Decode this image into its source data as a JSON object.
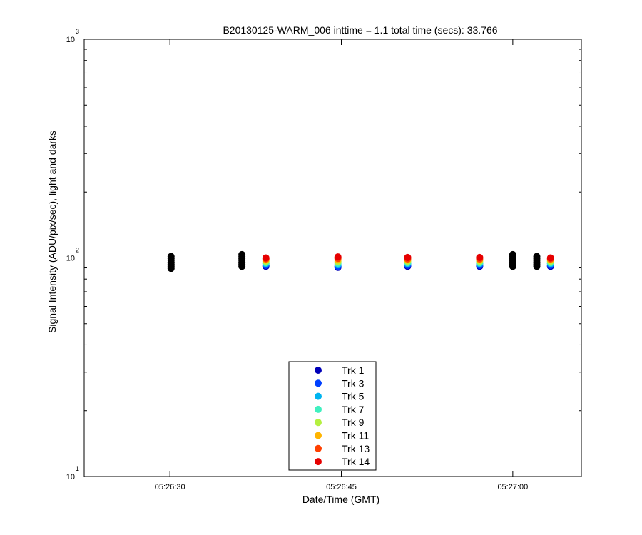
{
  "chart_data": {
    "type": "scatter",
    "title": "B20130125-WARM_006 inttime = 1.1 total time (secs): 33.766",
    "xlabel": "Date/Time (GMT)",
    "ylabel": "Signal Intensity (ADU/pix/sec), light and darks",
    "x_range": [
      "05:26:22.5",
      "05:27:06"
    ],
    "y_scale": "log",
    "ylim": [
      10,
      1000
    ],
    "grid": false,
    "legend_position": "bottom-center",
    "x_ticks": [
      "05:26:30",
      "05:26:45",
      "05:27:00"
    ],
    "y_ticks": [
      {
        "base": "10",
        "exp": "1"
      },
      {
        "base": "10",
        "exp": "2"
      },
      {
        "base": "10",
        "exp": "3"
      }
    ],
    "dark_color": "#000000",
    "dark_points": [
      {
        "x": "05:26:30.1",
        "y": [
          89.5,
          91.5,
          93.5,
          95.5,
          97.5,
          99.5,
          101.5
        ]
      },
      {
        "x": "05:26:36.3",
        "y": [
          91.5,
          93.5,
          95.5,
          97.5,
          99.5,
          101.5,
          103.5
        ]
      },
      {
        "x": "05:27:00.0",
        "y": [
          91.5,
          93.5,
          95.5,
          97.5,
          99.5,
          101.5,
          103.5
        ]
      },
      {
        "x": "05:27:02.1",
        "y": [
          91.5,
          93.5,
          95.5,
          97.5,
          99.5,
          101.5
        ]
      }
    ],
    "light_x": [
      "05:26:38.4",
      "05:26:44.7",
      "05:26:50.8",
      "05:26:57.1",
      "05:27:03.3"
    ],
    "series": [
      {
        "name": "Trk 1",
        "color": "#0000b8",
        "values": [
          91.5,
          90.5,
          91.5,
          91.5,
          91.5
        ]
      },
      {
        "name": "Trk 3",
        "color": "#0040ff",
        "values": [
          92.5,
          91.5,
          92.5,
          92.5,
          92.5
        ]
      },
      {
        "name": "Trk 5",
        "color": "#00b4f0",
        "values": [
          94,
          93,
          94,
          94,
          94
        ]
      },
      {
        "name": "Trk 7",
        "color": "#40f0c0",
        "values": [
          95,
          94.5,
          95,
          95,
          95
        ]
      },
      {
        "name": "Trk 9",
        "color": "#b4f040",
        "values": [
          96.5,
          96,
          96.5,
          96.5,
          96.5
        ]
      },
      {
        "name": "Trk 11",
        "color": "#ffb400",
        "values": [
          98,
          98,
          98,
          98,
          98
        ]
      },
      {
        "name": "Trk 13",
        "color": "#ff4000",
        "values": [
          99,
          99.5,
          99,
          99,
          99
        ]
      },
      {
        "name": "Trk 14",
        "color": "#e60000",
        "values": [
          100,
          101,
          100.5,
          100.5,
          100
        ]
      }
    ]
  }
}
